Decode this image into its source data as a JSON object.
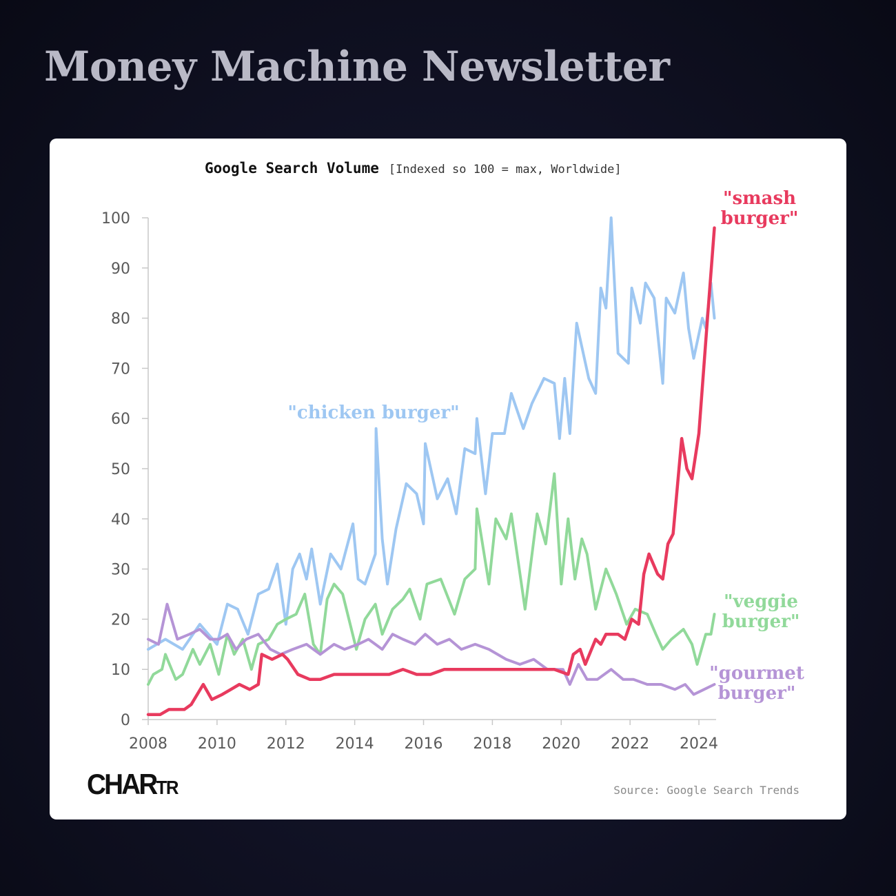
{
  "page": {
    "header_title": "Money Machine Newsletter",
    "source": "Source: Google Search Trends",
    "brand": {
      "main": "CHAR",
      "small": "TR"
    }
  },
  "chart_data": {
    "type": "line",
    "title": "Google Search Volume",
    "subtitle": "[Indexed so 100 = max, Worldwide]",
    "xlabel": "",
    "ylabel": "",
    "xlim": [
      2008,
      2024.5
    ],
    "ylim": [
      0,
      100
    ],
    "x_ticks": [
      "2008",
      "2010",
      "2012",
      "2014",
      "2016",
      "2018",
      "2020",
      "2022",
      "2024"
    ],
    "y_ticks": [
      "0",
      "10",
      "20",
      "30",
      "40",
      "50",
      "60",
      "70",
      "80",
      "90",
      "100"
    ],
    "grid": false,
    "legend": "inline labels at line ends",
    "series": [
      {
        "name": "\"chicken burger\"",
        "label_lines": [
          "\"chicken burger\""
        ],
        "color": "#9ec7f2",
        "points": [
          [
            2008,
            14
          ],
          [
            2008.5,
            16
          ],
          [
            2009,
            14
          ],
          [
            2009.5,
            19
          ],
          [
            2010,
            15
          ],
          [
            2010.3,
            23
          ],
          [
            2010.6,
            22
          ],
          [
            2010.9,
            17
          ],
          [
            2011.2,
            25
          ],
          [
            2011.5,
            26
          ],
          [
            2011.75,
            31
          ],
          [
            2012,
            19
          ],
          [
            2012.2,
            30
          ],
          [
            2012.4,
            33
          ],
          [
            2012.6,
            28
          ],
          [
            2012.75,
            34
          ],
          [
            2013,
            23
          ],
          [
            2013.3,
            33
          ],
          [
            2013.6,
            30
          ],
          [
            2013.95,
            39
          ],
          [
            2014.1,
            28
          ],
          [
            2014.3,
            27
          ],
          [
            2014.6,
            33
          ],
          [
            2014.62,
            58
          ],
          [
            2014.8,
            36
          ],
          [
            2014.95,
            27
          ],
          [
            2015.2,
            38
          ],
          [
            2015.5,
            47
          ],
          [
            2015.8,
            45
          ],
          [
            2016,
            39
          ],
          [
            2016.05,
            55
          ],
          [
            2016.4,
            44
          ],
          [
            2016.7,
            48
          ],
          [
            2016.95,
            41
          ],
          [
            2017.2,
            54
          ],
          [
            2017.5,
            53
          ],
          [
            2017.55,
            60
          ],
          [
            2017.8,
            45
          ],
          [
            2018,
            57
          ],
          [
            2018.35,
            57
          ],
          [
            2018.55,
            65
          ],
          [
            2018.9,
            58
          ],
          [
            2019.15,
            63
          ],
          [
            2019.5,
            68
          ],
          [
            2019.8,
            67
          ],
          [
            2019.95,
            56
          ],
          [
            2020.1,
            68
          ],
          [
            2020.25,
            57
          ],
          [
            2020.45,
            79
          ],
          [
            2020.8,
            68
          ],
          [
            2021,
            65
          ],
          [
            2021.15,
            86
          ],
          [
            2021.3,
            82
          ],
          [
            2021.45,
            100
          ],
          [
            2021.65,
            73
          ],
          [
            2021.95,
            71
          ],
          [
            2022.05,
            86
          ],
          [
            2022.3,
            79
          ],
          [
            2022.45,
            87
          ],
          [
            2022.7,
            84
          ],
          [
            2022.95,
            67
          ],
          [
            2023.05,
            84
          ],
          [
            2023.3,
            81
          ],
          [
            2023.55,
            89
          ],
          [
            2023.7,
            78
          ],
          [
            2023.85,
            72
          ],
          [
            2024.1,
            80
          ],
          [
            2024.2,
            78
          ],
          [
            2024.35,
            87
          ],
          [
            2024.45,
            80
          ]
        ]
      },
      {
        "name": "\"veggie burger\"",
        "label_lines": [
          "\"veggie",
          "burger\""
        ],
        "color": "#91d99a",
        "points": [
          [
            2008,
            7
          ],
          [
            2008.15,
            9
          ],
          [
            2008.4,
            10
          ],
          [
            2008.5,
            13
          ],
          [
            2008.8,
            8
          ],
          [
            2009,
            9
          ],
          [
            2009.3,
            14
          ],
          [
            2009.5,
            11
          ],
          [
            2009.8,
            15
          ],
          [
            2010.05,
            9
          ],
          [
            2010.3,
            17
          ],
          [
            2010.5,
            13
          ],
          [
            2010.75,
            16
          ],
          [
            2011,
            10
          ],
          [
            2011.2,
            15
          ],
          [
            2011.5,
            16
          ],
          [
            2011.75,
            19
          ],
          [
            2012,
            20
          ],
          [
            2012.3,
            21
          ],
          [
            2012.55,
            25
          ],
          [
            2012.8,
            15
          ],
          [
            2013,
            13
          ],
          [
            2013.2,
            24
          ],
          [
            2013.4,
            27
          ],
          [
            2013.65,
            25
          ],
          [
            2014.05,
            14
          ],
          [
            2014.3,
            20
          ],
          [
            2014.6,
            23
          ],
          [
            2014.8,
            17
          ],
          [
            2015.1,
            22
          ],
          [
            2015.4,
            24
          ],
          [
            2015.6,
            26
          ],
          [
            2015.9,
            20
          ],
          [
            2016.1,
            27
          ],
          [
            2016.5,
            28
          ],
          [
            2016.9,
            21
          ],
          [
            2017.2,
            28
          ],
          [
            2017.5,
            30
          ],
          [
            2017.55,
            42
          ],
          [
            2017.9,
            27
          ],
          [
            2018.1,
            40
          ],
          [
            2018.4,
            36
          ],
          [
            2018.55,
            41
          ],
          [
            2018.95,
            22
          ],
          [
            2019.3,
            41
          ],
          [
            2019.55,
            35
          ],
          [
            2019.8,
            49
          ],
          [
            2020,
            27
          ],
          [
            2020.2,
            40
          ],
          [
            2020.4,
            28
          ],
          [
            2020.6,
            36
          ],
          [
            2020.75,
            33
          ],
          [
            2021,
            22
          ],
          [
            2021.3,
            30
          ],
          [
            2021.6,
            25
          ],
          [
            2021.9,
            19
          ],
          [
            2022.15,
            22
          ],
          [
            2022.5,
            21
          ],
          [
            2022.75,
            17
          ],
          [
            2022.95,
            14
          ],
          [
            2023.2,
            16
          ],
          [
            2023.55,
            18
          ],
          [
            2023.8,
            15
          ],
          [
            2023.95,
            11
          ],
          [
            2024.2,
            17
          ],
          [
            2024.35,
            17
          ],
          [
            2024.45,
            21
          ]
        ]
      },
      {
        "name": "\"gourmet burger\"",
        "label_lines": [
          "\"gourmet",
          "burger\""
        ],
        "color": "#b594d6",
        "points": [
          [
            2008,
            16
          ],
          [
            2008.3,
            15
          ],
          [
            2008.55,
            23
          ],
          [
            2008.85,
            16
          ],
          [
            2009.2,
            17
          ],
          [
            2009.5,
            18
          ],
          [
            2009.8,
            16
          ],
          [
            2010.05,
            16
          ],
          [
            2010.3,
            17
          ],
          [
            2010.55,
            14
          ],
          [
            2010.85,
            16
          ],
          [
            2011.2,
            17
          ],
          [
            2011.55,
            14
          ],
          [
            2011.85,
            13
          ],
          [
            2012.2,
            14
          ],
          [
            2012.6,
            15
          ],
          [
            2013,
            13
          ],
          [
            2013.4,
            15
          ],
          [
            2013.7,
            14
          ],
          [
            2014.1,
            15
          ],
          [
            2014.4,
            16
          ],
          [
            2014.6,
            15
          ],
          [
            2014.8,
            14
          ],
          [
            2015.1,
            17
          ],
          [
            2015.4,
            16
          ],
          [
            2015.75,
            15
          ],
          [
            2016.05,
            17
          ],
          [
            2016.4,
            15
          ],
          [
            2016.75,
            16
          ],
          [
            2017.1,
            14
          ],
          [
            2017.5,
            15
          ],
          [
            2017.9,
            14
          ],
          [
            2018.4,
            12
          ],
          [
            2018.8,
            11
          ],
          [
            2019.2,
            12
          ],
          [
            2019.6,
            10
          ],
          [
            2020.05,
            10
          ],
          [
            2020.25,
            7
          ],
          [
            2020.5,
            11
          ],
          [
            2020.75,
            8
          ],
          [
            2021.05,
            8
          ],
          [
            2021.45,
            10
          ],
          [
            2021.8,
            8
          ],
          [
            2022.1,
            8
          ],
          [
            2022.5,
            7
          ],
          [
            2022.9,
            7
          ],
          [
            2023.3,
            6
          ],
          [
            2023.6,
            7
          ],
          [
            2023.85,
            5
          ],
          [
            2024.15,
            6
          ],
          [
            2024.45,
            7
          ]
        ]
      },
      {
        "name": "\"smash burger\"",
        "label_lines": [
          "\"smash",
          "burger\""
        ],
        "color": "#e83a5e",
        "points": [
          [
            2008,
            1
          ],
          [
            2008.35,
            1
          ],
          [
            2008.6,
            2
          ],
          [
            2009.05,
            2
          ],
          [
            2009.25,
            3
          ],
          [
            2009.6,
            7
          ],
          [
            2009.85,
            4
          ],
          [
            2010.15,
            5
          ],
          [
            2010.4,
            6
          ],
          [
            2010.65,
            7
          ],
          [
            2010.95,
            6
          ],
          [
            2011.2,
            7
          ],
          [
            2011.3,
            13
          ],
          [
            2011.6,
            12
          ],
          [
            2011.9,
            13
          ],
          [
            2012.05,
            12
          ],
          [
            2012.35,
            9
          ],
          [
            2012.7,
            8
          ],
          [
            2013,
            8
          ],
          [
            2013.4,
            9
          ],
          [
            2013.8,
            9
          ],
          [
            2014.2,
            9
          ],
          [
            2014.6,
            9
          ],
          [
            2015,
            9
          ],
          [
            2015.4,
            10
          ],
          [
            2015.8,
            9
          ],
          [
            2016.2,
            9
          ],
          [
            2016.6,
            10
          ],
          [
            2017,
            10
          ],
          [
            2017.4,
            10
          ],
          [
            2017.8,
            10
          ],
          [
            2018.2,
            10
          ],
          [
            2018.6,
            10
          ],
          [
            2019,
            10
          ],
          [
            2019.4,
            10
          ],
          [
            2019.8,
            10
          ],
          [
            2020.2,
            9
          ],
          [
            2020.35,
            13
          ],
          [
            2020.55,
            14
          ],
          [
            2020.7,
            11
          ],
          [
            2021,
            16
          ],
          [
            2021.15,
            15
          ],
          [
            2021.3,
            17
          ],
          [
            2021.65,
            17
          ],
          [
            2021.85,
            16
          ],
          [
            2022.05,
            20
          ],
          [
            2022.25,
            19
          ],
          [
            2022.4,
            29
          ],
          [
            2022.55,
            33
          ],
          [
            2022.8,
            29
          ],
          [
            2022.95,
            28
          ],
          [
            2023.1,
            35
          ],
          [
            2023.25,
            37
          ],
          [
            2023.5,
            56
          ],
          [
            2023.65,
            50
          ],
          [
            2023.8,
            48
          ],
          [
            2024,
            57
          ],
          [
            2024.25,
            80
          ],
          [
            2024.45,
            98
          ]
        ]
      }
    ]
  }
}
